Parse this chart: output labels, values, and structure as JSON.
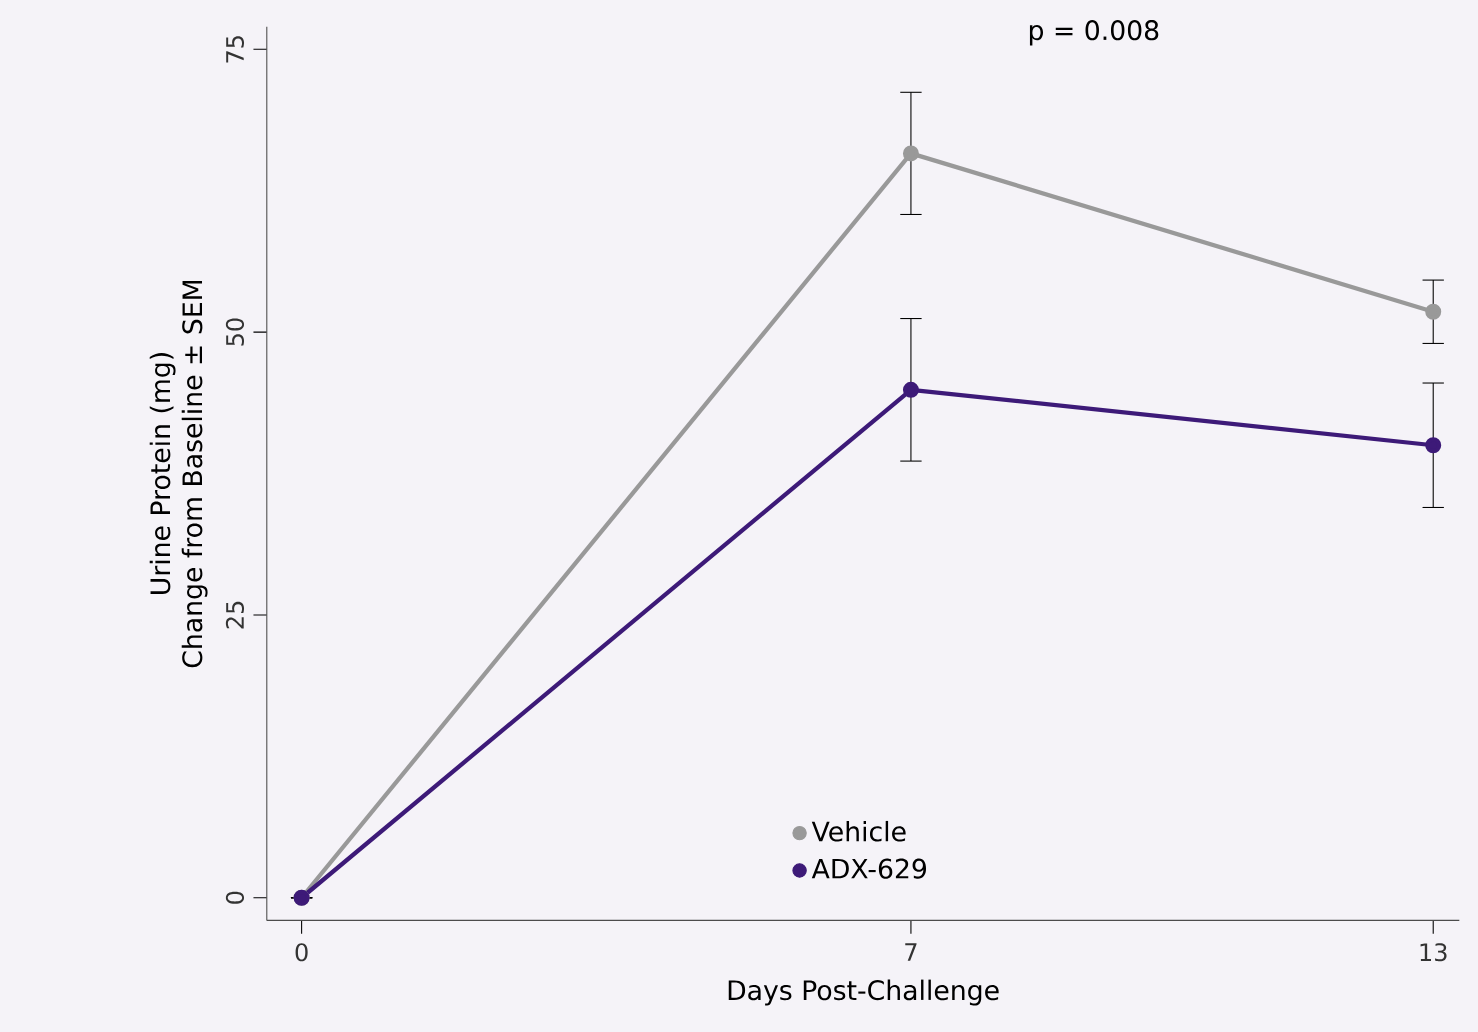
{
  "chart_data": {
    "type": "line",
    "xlabel": "Days Post-Challenge",
    "ylabel": "Urine Protein (mg)\nChange from Baseline ± SEM",
    "x": [
      0,
      7,
      13
    ],
    "xlim": [
      -0.4,
      13.3
    ],
    "ylim": [
      -2,
      77
    ],
    "xticks": [
      0,
      7,
      13
    ],
    "yticks": [
      0,
      25,
      50,
      75
    ],
    "series": [
      {
        "name": "Vehicle",
        "color": "#999999",
        "values": [
          0,
          65.8,
          51.8
        ],
        "errors": [
          null,
          5.4,
          2.8
        ]
      },
      {
        "name": "ADX-629",
        "color": "#3d1a78",
        "values": [
          0,
          44.9,
          40.0
        ],
        "errors": [
          null,
          6.3,
          5.5
        ]
      }
    ],
    "annotations": [
      "p = 0.008"
    ],
    "legend": "bottom",
    "marker": "circle",
    "line_style": "solid",
    "grid": false
  }
}
